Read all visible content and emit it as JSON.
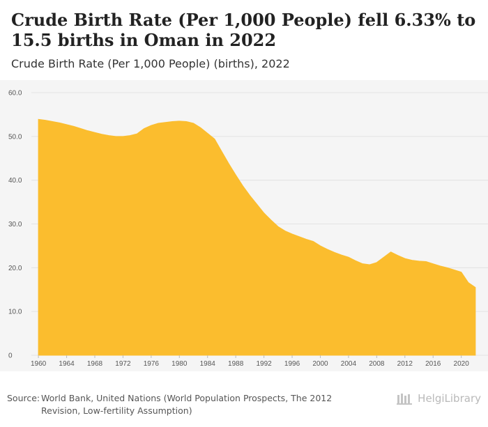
{
  "header": {
    "title": "Crude Birth Rate (Per 1,000 People) fell 6.33% to 15.5 births in Oman in 2022",
    "subtitle": "Crude Birth Rate (Per 1,000 People) (births), 2022"
  },
  "footer": {
    "source_label": "Source:",
    "source_line1": "World Bank, United Nations (World Population Prospects, The 2012",
    "source_line2": "Revision, Low-fertility Assumption)",
    "brand": "HelgiLibrary"
  },
  "colors": {
    "area": "#fbbd2e",
    "panel": "#f5f5f5",
    "grid": "#e2e2e2"
  },
  "chart_data": {
    "type": "area",
    "title": "Crude Birth Rate (Per 1,000 People) (births), 2022",
    "xlabel": "",
    "ylabel": "",
    "xlim": [
      1959,
      2023
    ],
    "ylim": [
      0,
      60
    ],
    "y_ticks": [
      0,
      10.0,
      20.0,
      30.0,
      40.0,
      50.0,
      60.0
    ],
    "y_tick_labels": [
      "0",
      "10.0",
      "20.0",
      "30.0",
      "40.0",
      "50.0",
      "60.0"
    ],
    "x_ticks": [
      1960,
      1964,
      1968,
      1972,
      1976,
      1980,
      1984,
      1988,
      1992,
      1996,
      2000,
      2004,
      2008,
      2012,
      2016,
      2020
    ],
    "x_tick_labels": [
      "1960",
      "1964",
      "1968",
      "1972",
      "1976",
      "1980",
      "1984",
      "1988",
      "1992",
      "1996",
      "2000",
      "2004",
      "2008",
      "2012",
      "2016",
      "2020"
    ],
    "grid": true,
    "series": [
      {
        "name": "Oman",
        "x": [
          1960,
          1961,
          1962,
          1963,
          1964,
          1965,
          1966,
          1967,
          1968,
          1969,
          1970,
          1971,
          1972,
          1973,
          1974,
          1975,
          1976,
          1977,
          1978,
          1979,
          1980,
          1981,
          1982,
          1983,
          1984,
          1985,
          1986,
          1987,
          1988,
          1989,
          1990,
          1991,
          1992,
          1993,
          1994,
          1995,
          1996,
          1997,
          1998,
          1999,
          2000,
          2001,
          2002,
          2003,
          2004,
          2005,
          2006,
          2007,
          2008,
          2009,
          2010,
          2011,
          2012,
          2013,
          2014,
          2015,
          2016,
          2017,
          2018,
          2019,
          2020,
          2021,
          2022
        ],
        "values": [
          53.9,
          53.7,
          53.4,
          53.1,
          52.7,
          52.3,
          51.8,
          51.3,
          50.9,
          50.5,
          50.2,
          50.0,
          50.0,
          50.2,
          50.6,
          51.8,
          52.5,
          53.0,
          53.2,
          53.4,
          53.5,
          53.4,
          53.0,
          52.0,
          50.7,
          49.4,
          46.6,
          43.8,
          41.2,
          38.7,
          36.5,
          34.5,
          32.5,
          30.9,
          29.4,
          28.4,
          27.7,
          27.1,
          26.5,
          26.0,
          25.0,
          24.2,
          23.5,
          22.9,
          22.4,
          21.6,
          20.9,
          20.7,
          21.2,
          22.4,
          23.6,
          22.8,
          22.1,
          21.7,
          21.5,
          21.4,
          20.9,
          20.4,
          20.0,
          19.5,
          19.0,
          16.6,
          15.5
        ]
      }
    ]
  }
}
